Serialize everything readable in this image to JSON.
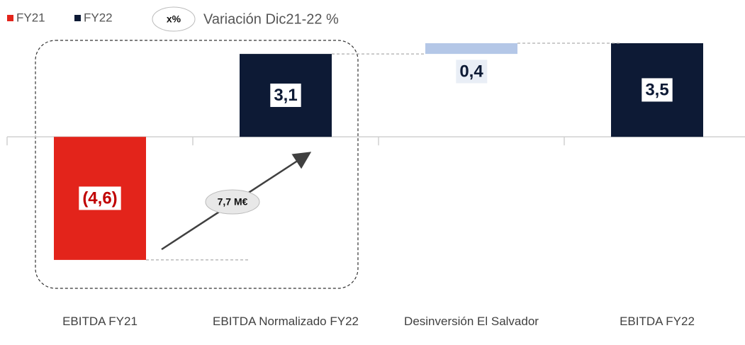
{
  "chart_data": {
    "type": "waterfall",
    "legend": [
      {
        "name": "FY21",
        "color": "#e3241b"
      },
      {
        "name": "FY22",
        "color": "#0d1a35"
      }
    ],
    "annotation_legend": "x%",
    "annotation_legend_label": "Variación Dic21-22 %",
    "annotation": "7,7 M€",
    "categories": [
      "EBITDA FY21",
      "EBITDA Normalizado FY22",
      "Desinversión El Salvador",
      "EBITDA FY22"
    ],
    "values": [
      -4.6,
      3.1,
      0.4,
      3.5
    ],
    "value_labels": [
      "(4,6)",
      "3,1",
      "0,4",
      "3,5"
    ],
    "measure": [
      "absolute",
      "absolute",
      "relative",
      "total"
    ],
    "colors": [
      "#e3241b",
      "#0d1a35",
      "#b4c7e7",
      "#0d1a35"
    ],
    "ylim": [
      -5,
      3.5
    ]
  }
}
